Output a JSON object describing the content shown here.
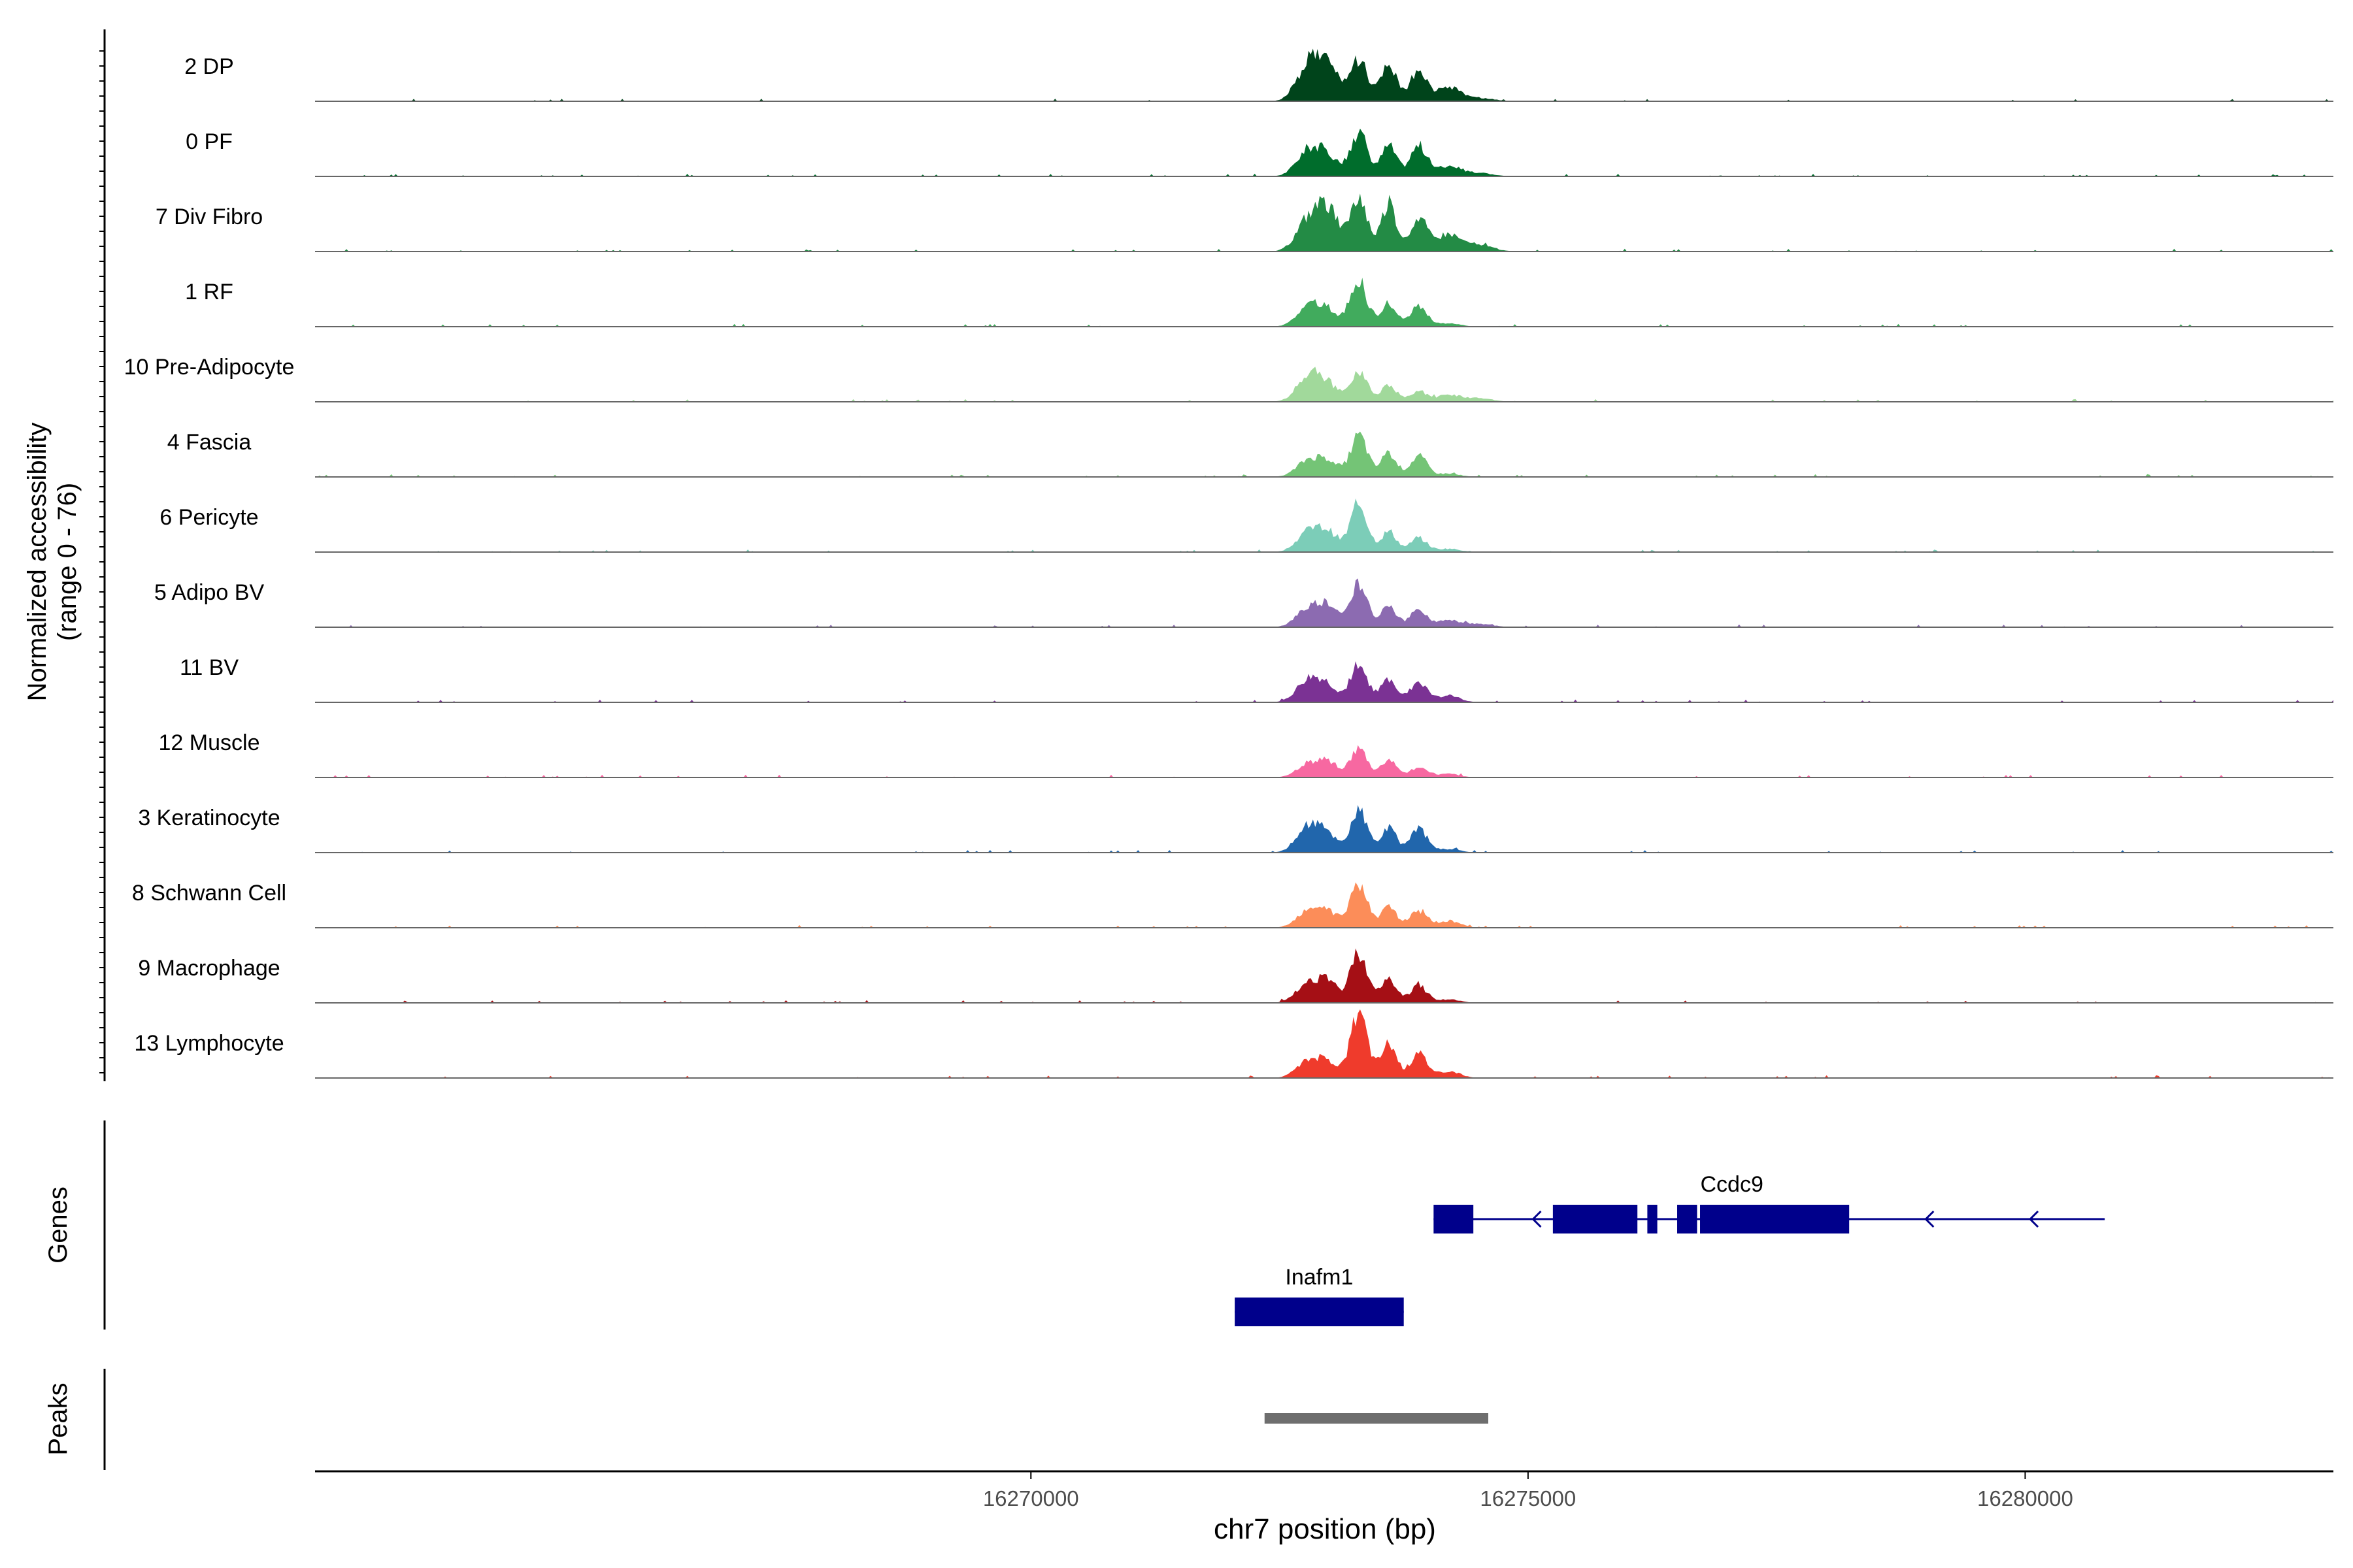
{
  "chart_data": {
    "type": "area",
    "title": "",
    "ylabel_line1": "Normalized accessibility",
    "ylabel_line2": "(range 0 - 76)",
    "y_range": [
      0,
      76
    ],
    "xlabel": "chr7 position (bp)",
    "xlim": [
      16262800,
      16283100
    ],
    "x_ticks": [
      16270000,
      16275000,
      16280000
    ],
    "x_tick_labels": [
      "16270000",
      "16275000",
      "16280000"
    ],
    "track_labels": {
      "genes": "Genes",
      "peaks": "Peaks"
    },
    "peak_profile_positions": [
      16272800,
      16273000,
      16273300,
      16273600,
      16273900,
      16274200,
      16274500
    ],
    "tracks": [
      {
        "label": "2 DP",
        "color": "#00441b",
        "peaks": [
          0.55,
          0.45,
          0.6,
          0.55,
          0.45,
          0.2,
          0.05
        ]
      },
      {
        "label": "0 PF",
        "color": "#006d2c",
        "peaks": [
          0.4,
          0.25,
          0.65,
          0.45,
          0.45,
          0.15,
          0.05
        ]
      },
      {
        "label": "7 Div Fibro",
        "color": "#238b45",
        "peaks": [
          0.5,
          0.55,
          0.8,
          0.7,
          0.5,
          0.25,
          0.1
        ]
      },
      {
        "label": "1 RF",
        "color": "#41ab5d",
        "peaks": [
          0.3,
          0.2,
          0.65,
          0.35,
          0.3,
          0.05,
          0.0
        ]
      },
      {
        "label": "10 Pre-Adipocyte",
        "color": "#a1d99b",
        "peaks": [
          0.4,
          0.2,
          0.45,
          0.25,
          0.15,
          0.1,
          0.05
        ]
      },
      {
        "label": "4 Fascia",
        "color": "#74c476",
        "peaks": [
          0.25,
          0.2,
          0.6,
          0.35,
          0.3,
          0.05,
          0.0
        ]
      },
      {
        "label": "6 Pericyte",
        "color": "#7ccdb8",
        "peaks": [
          0.3,
          0.25,
          0.7,
          0.3,
          0.2,
          0.05,
          0.0
        ]
      },
      {
        "label": "5 Adipo BV",
        "color": "#8c6bb1",
        "peaks": [
          0.3,
          0.25,
          0.65,
          0.3,
          0.25,
          0.1,
          0.05
        ]
      },
      {
        "label": "11 BV",
        "color": "#7b3294",
        "peaks": [
          0.35,
          0.2,
          0.55,
          0.35,
          0.3,
          0.1,
          0.0
        ]
      },
      {
        "label": "12 Muscle",
        "color": "#f768a1",
        "peaks": [
          0.2,
          0.2,
          0.4,
          0.25,
          0.15,
          0.05,
          0.0
        ]
      },
      {
        "label": "3 Keratinocyte",
        "color": "#2166ac",
        "peaks": [
          0.4,
          0.2,
          0.6,
          0.35,
          0.35,
          0.05,
          0.0
        ]
      },
      {
        "label": "8 Schwann Cell",
        "color": "#fc8d59",
        "peaks": [
          0.25,
          0.2,
          0.65,
          0.3,
          0.25,
          0.1,
          0.0
        ]
      },
      {
        "label": "9 Macrophage",
        "color": "#a50f15",
        "peaks": [
          0.3,
          0.25,
          0.75,
          0.35,
          0.25,
          0.05,
          0.0
        ]
      },
      {
        "label": "13 Lymphocyte",
        "color": "#ef3b2c",
        "peaks": [
          0.25,
          0.2,
          0.95,
          0.5,
          0.35,
          0.1,
          0.0
        ]
      }
    ],
    "genes": [
      {
        "name": "Ccdc9",
        "strand": "-",
        "start": 16274050,
        "end": 16280800,
        "exons": [
          [
            16274050,
            16274450
          ],
          [
            16275250,
            16276100
          ],
          [
            16276200,
            16276300
          ],
          [
            16276500,
            16276700
          ],
          [
            16276730,
            16278230
          ]
        ],
        "arrows": [
          16275050,
          16279000,
          16280050
        ]
      },
      {
        "name": "Inafm1",
        "strand": "+",
        "start": 16272050,
        "end": 16273750,
        "exons": [
          [
            16272050,
            16273750
          ]
        ],
        "arrows": []
      }
    ],
    "peaks_region": [
      [
        16272350,
        16274600
      ]
    ]
  }
}
